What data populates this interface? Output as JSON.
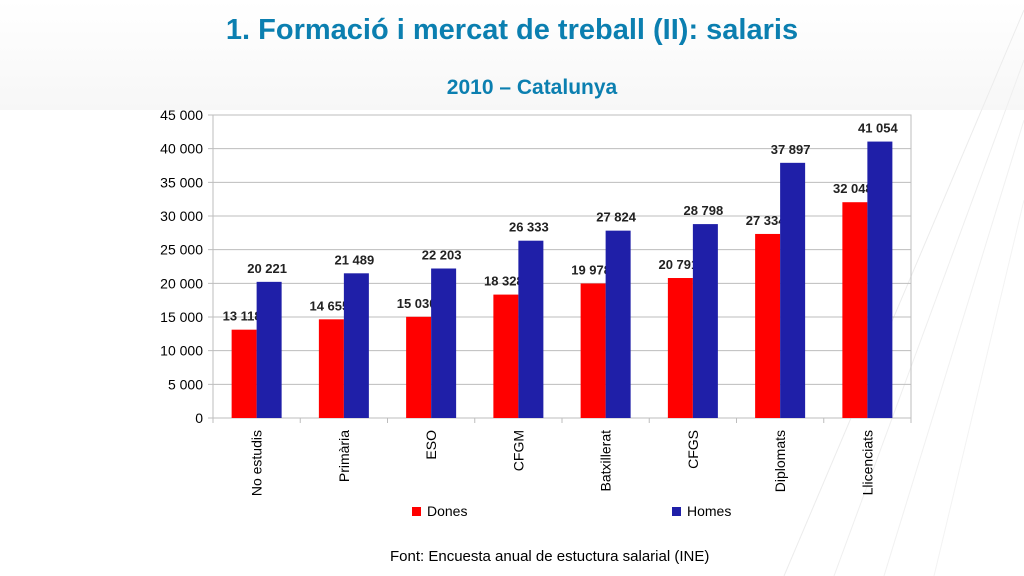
{
  "slide": {
    "title": "1. Formació i mercat de treball (II): salaris",
    "subtitle": "2010 – Catalunya",
    "source": "Font: Encuesta anual de estuctura salarial (INE)"
  },
  "chart_data": {
    "type": "bar",
    "categories": [
      "No estudis",
      "Primària",
      "ESO",
      "CFGM",
      "Batxillerat",
      "CFGS",
      "Diplomats",
      "Llicenciats"
    ],
    "series": [
      {
        "name": "Dones",
        "values": [
          13118,
          14655,
          15030,
          18328,
          19978,
          20791,
          27334,
          32048
        ],
        "labels": [
          "13 118",
          "14 655",
          "15 030",
          "18 328",
          "19 978",
          "20 791",
          "27 334",
          "32 048"
        ],
        "color": "#ff0000"
      },
      {
        "name": "Homes",
        "values": [
          20221,
          21489,
          22203,
          26333,
          27824,
          28798,
          37897,
          41054
        ],
        "labels": [
          "20 221",
          "21 489",
          "22 203",
          "26 333",
          "27 824",
          "28 798",
          "37 897",
          "41 054"
        ],
        "color": "#1f1fa8"
      }
    ],
    "y_ticks": [
      "0",
      "5 000",
      "10 000",
      "15 000",
      "20 000",
      "25 000",
      "30 000",
      "35 000",
      "40 000",
      "45 000"
    ],
    "ylim": [
      0,
      45000
    ],
    "grid": true,
    "legend_position": "bottom"
  }
}
